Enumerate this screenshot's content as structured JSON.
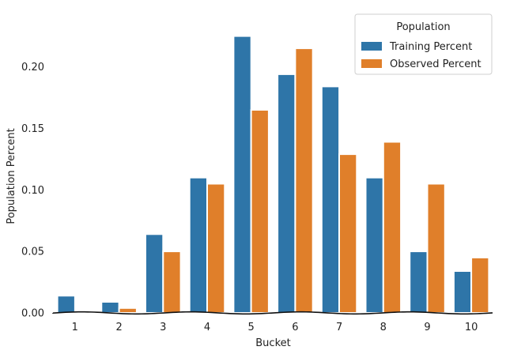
{
  "chart_data": {
    "type": "bar",
    "xlabel": "Bucket",
    "ylabel": "Population Percent",
    "categories": [
      "1",
      "2",
      "3",
      "4",
      "5",
      "6",
      "7",
      "8",
      "9",
      "10"
    ],
    "ylim": [
      0,
      0.235
    ],
    "yticks": [
      "0.00",
      "0.05",
      "0.10",
      "0.15",
      "0.20"
    ],
    "legend": {
      "title": "Population",
      "position": "top-right"
    },
    "series": [
      {
        "name": "Training Percent",
        "color": "#2e75a8",
        "values": [
          0.014,
          0.009,
          0.064,
          0.11,
          0.225,
          0.194,
          0.184,
          0.11,
          0.05,
          0.034
        ]
      },
      {
        "name": "Observed Percent",
        "color": "#e07f2a",
        "values": [
          0.0,
          0.004,
          0.05,
          0.105,
          0.165,
          0.215,
          0.129,
          0.139,
          0.105,
          0.045
        ]
      }
    ],
    "grid": false
  }
}
